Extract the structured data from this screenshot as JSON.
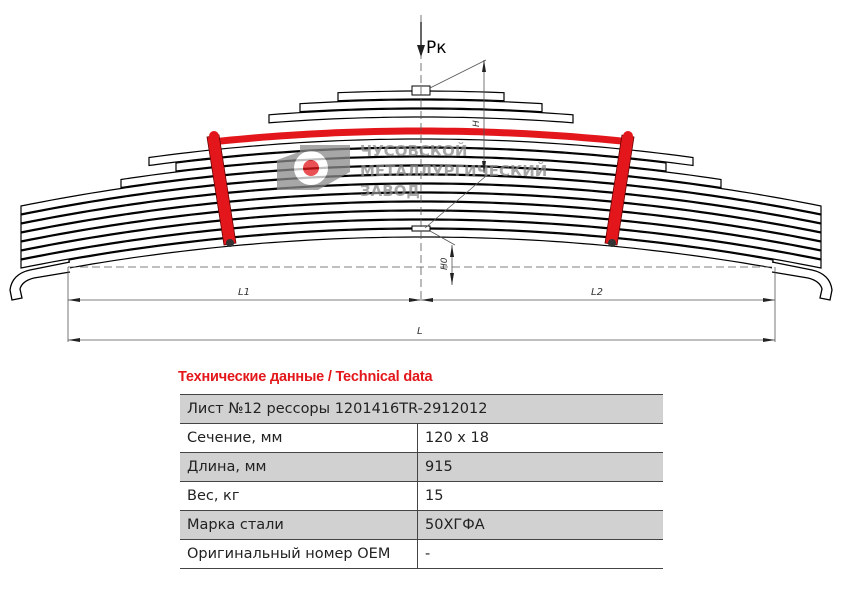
{
  "drawing": {
    "load_label": "Pк",
    "height_label": "H",
    "height0_label": "H0",
    "l1_label": "L1",
    "l2_label": "L2",
    "l_label": "L",
    "highlight_color": "#e3171b",
    "logo": {
      "lines": [
        "ЧУСОВСКОЙ",
        "МЕТАЛЛУРГИЧЕСКИЙ",
        "ЗАВОД"
      ]
    }
  },
  "table": {
    "title": "Технические данные / Technical data",
    "header": "Лист №12 рессоры 1201416TR-2912012",
    "rows": [
      {
        "label": "Сечение, мм",
        "value": "120 x 18"
      },
      {
        "label": "Длина, мм",
        "value": "915"
      },
      {
        "label": "Вес, кг",
        "value": "15"
      },
      {
        "label": "Марка стали",
        "value": "50ХГФА"
      },
      {
        "label": "Оригинальный номер OEM",
        "value": "-"
      }
    ]
  }
}
